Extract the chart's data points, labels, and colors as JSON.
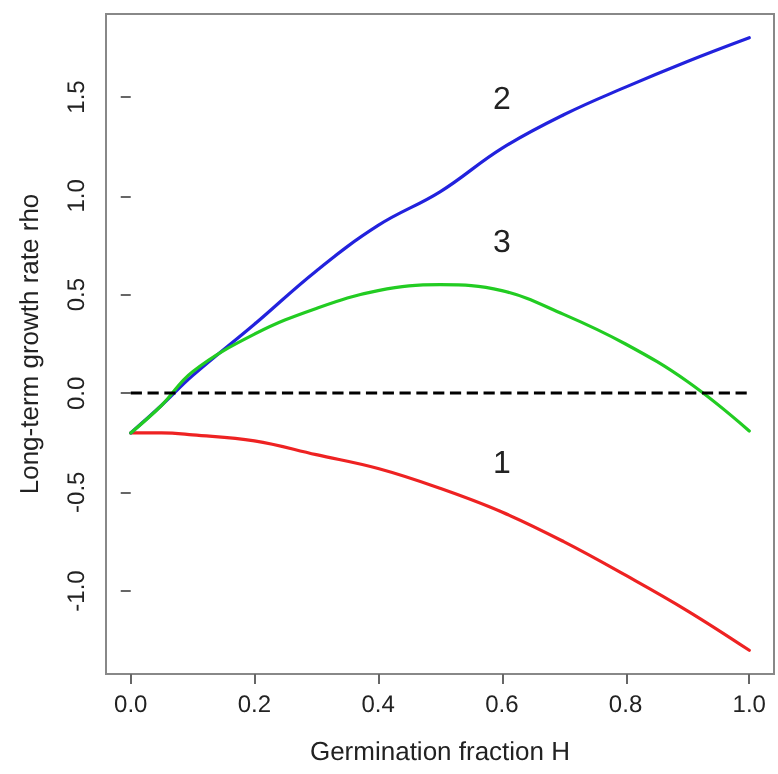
{
  "chart_data": {
    "type": "line",
    "xlabel": "Germination fraction H",
    "ylabel": "Long-term growth rate rho",
    "x": [
      0,
      0.05,
      0.1,
      0.2,
      0.3,
      0.4,
      0.5,
      0.6,
      0.7,
      0.8,
      0.9,
      1.0
    ],
    "series": [
      {
        "name": "1",
        "color": "#ee2222",
        "values": [
          -0.2,
          -0.2,
          -0.21,
          -0.24,
          -0.31,
          -0.38,
          -0.48,
          -0.6,
          -0.75,
          -0.92,
          -1.1,
          -1.3
        ]
      },
      {
        "name": "2",
        "color": "#2222dd",
        "values": [
          -0.2,
          -0.06,
          0.09,
          0.35,
          0.62,
          0.85,
          1.02,
          1.24,
          1.41,
          1.55,
          1.68,
          1.8
        ]
      },
      {
        "name": "3",
        "color": "#22cc22",
        "values": [
          -0.2,
          -0.06,
          0.11,
          0.3,
          0.43,
          0.52,
          0.55,
          0.52,
          0.4,
          0.25,
          0.06,
          -0.19
        ]
      }
    ],
    "xlim": [
      -0.04,
      1.04
    ],
    "xticks": [
      {
        "value": 0,
        "label": "0.0"
      },
      0.2,
      0.4,
      0.6,
      0.8,
      {
        "value": 1,
        "label": "1.0"
      }
    ],
    "ylim": [
      -1.42,
      1.92
    ],
    "yticks": [
      {
        "value": -1,
        "label": "-1.0"
      },
      -0.5,
      {
        "value": 0,
        "label": "0.0"
      },
      0.5,
      {
        "value": 1,
        "label": "1.0"
      },
      1.5
    ],
    "ref_lines": [
      {
        "axis": "y",
        "value": 0,
        "color": "#000000",
        "line_style": "dashed"
      }
    ],
    "grid": false,
    "marker": "none",
    "line_style": "solid"
  }
}
